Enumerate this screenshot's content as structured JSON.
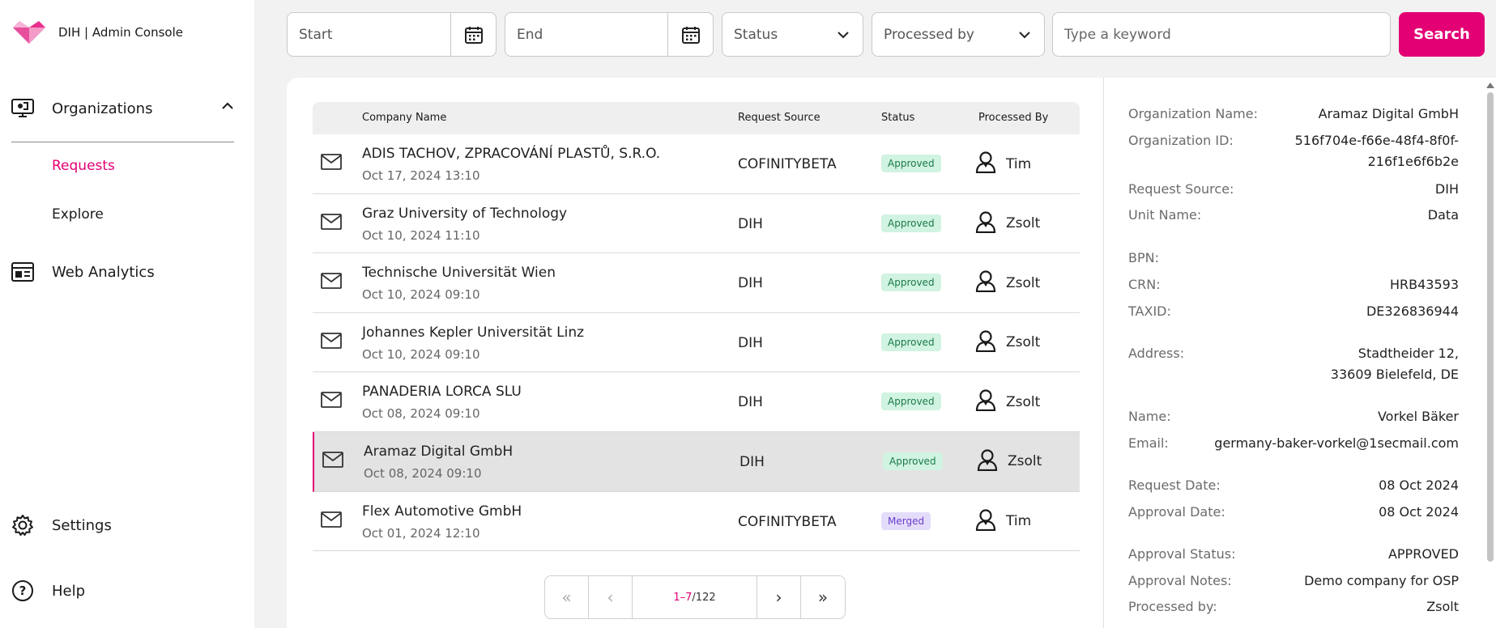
{
  "brand": {
    "title": "DIH | Admin Console"
  },
  "sidebar": {
    "organizations_label": "Organizations",
    "requests_label": "Requests",
    "explore_label": "Explore",
    "web_analytics_label": "Web Analytics",
    "settings_label": "Settings",
    "help_label": "Help"
  },
  "filters": {
    "start_placeholder": "Start",
    "end_placeholder": "End",
    "status_label": "Status",
    "processed_by_label": "Processed by",
    "keyword_placeholder": "Type a keyword",
    "search_label": "Search"
  },
  "table": {
    "headers": {
      "company": "Company Name",
      "source": "Request Source",
      "status": "Status",
      "processed_by": "Processed By"
    },
    "rows": [
      {
        "company": "ADIS TACHOV, ZPRACOVÁNÍ PLASTŮ, S.R.O.",
        "date": "Oct 17, 2024 13:10",
        "source": "COFINITYBETA",
        "status": "Approved",
        "processed_by": "Tim"
      },
      {
        "company": "Graz University of Technology",
        "date": "Oct 10, 2024 11:10",
        "source": "DIH",
        "status": "Approved",
        "processed_by": "Zsolt"
      },
      {
        "company": "Technische Universität Wien",
        "date": "Oct 10, 2024 09:10",
        "source": "DIH",
        "status": "Approved",
        "processed_by": "Zsolt"
      },
      {
        "company": "Johannes Kepler Universität Linz",
        "date": "Oct 10, 2024 09:10",
        "source": "DIH",
        "status": "Approved",
        "processed_by": "Zsolt"
      },
      {
        "company": "PANADERIA LORCA SLU",
        "date": "Oct 08, 2024 09:10",
        "source": "DIH",
        "status": "Approved",
        "processed_by": "Zsolt"
      },
      {
        "company": "Aramaz Digital GmbH",
        "date": "Oct 08, 2024 09:10",
        "source": "DIH",
        "status": "Approved",
        "processed_by": "Zsolt"
      },
      {
        "company": "Flex Automotive GmbH",
        "date": "Oct 01, 2024 12:10",
        "source": "COFINITYBETA",
        "status": "Merged",
        "processed_by": "Tim"
      }
    ],
    "selected_index": 5
  },
  "pagination": {
    "range": "1–7",
    "separator": " / ",
    "total": "122"
  },
  "detail": {
    "org_name_label": "Organization Name:",
    "org_name": "Aramaz Digital GmbH",
    "org_id_label": "Organization ID:",
    "org_id_line1": "516f704e-f66e-48f4-8f0f-",
    "org_id_line2": "216f1e6f6b2e",
    "source_label": "Request Source:",
    "source": "DIH",
    "unit_label": "Unit Name:",
    "unit": "Data",
    "bpn_label": "BPN:",
    "bpn": "",
    "crn_label": "CRN:",
    "crn": "HRB43593",
    "taxid_label": "TAXID:",
    "taxid": "DE326836944",
    "address_label": "Address:",
    "address_line1": "Stadtheider 12,",
    "address_line2": "33609 Bielefeld, DE",
    "name_label": "Name:",
    "name": "Vorkel Bäker",
    "email_label": "Email:",
    "email": "germany-baker-vorkel@1secmail.com",
    "request_date_label": "Request Date:",
    "request_date": "08 Oct 2024",
    "approval_date_label": "Approval Date:",
    "approval_date": "08 Oct 2024",
    "approval_status_label": "Approval Status:",
    "approval_status": "APPROVED",
    "approval_notes_label": "Approval Notes:",
    "approval_notes": "Demo company for OSP",
    "processed_by_label": "Processed by:",
    "processed_by": "Zsolt"
  },
  "colors": {
    "accent": "#e20074",
    "approved_bg": "#d1f3e1",
    "merged_bg": "#e4dcfb"
  }
}
